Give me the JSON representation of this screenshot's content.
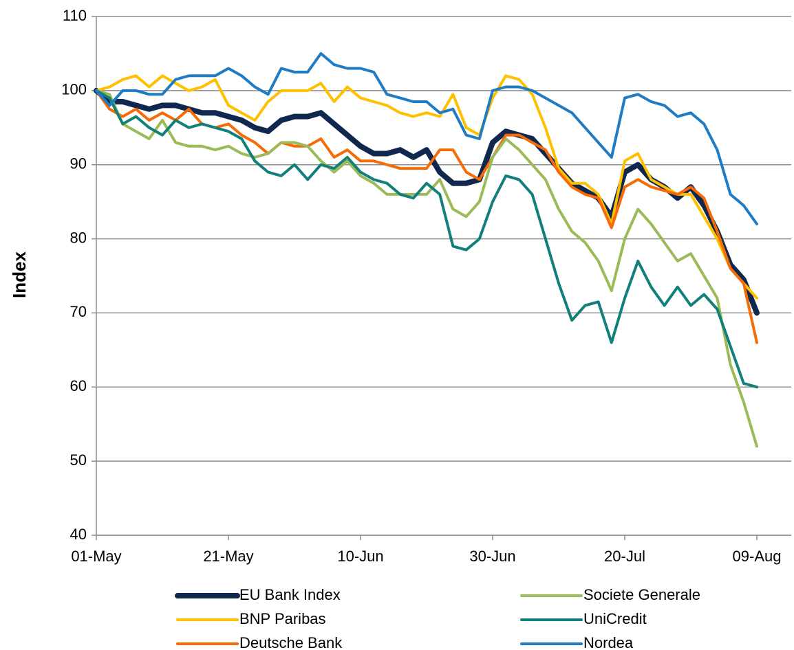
{
  "chart_data": {
    "type": "line",
    "y_label": "Index",
    "categories": [
      "01-May",
      null,
      null,
      null,
      null,
      null,
      null,
      null,
      null,
      null,
      "21-May",
      null,
      null,
      null,
      null,
      null,
      null,
      null,
      null,
      null,
      "10-Jun",
      null,
      null,
      null,
      null,
      null,
      null,
      null,
      null,
      null,
      "30-Jun",
      null,
      null,
      null,
      null,
      null,
      null,
      null,
      null,
      null,
      "20-Jul",
      null,
      null,
      null,
      null,
      null,
      null,
      null,
      null,
      null,
      "09-Aug"
    ],
    "ylim": [
      40,
      110
    ],
    "yticks": [
      40,
      50,
      60,
      70,
      80,
      90,
      100,
      110
    ],
    "grid": true,
    "legend": "bottom",
    "series": [
      {
        "name": "EU Bank Index",
        "color": "#10284e",
        "line_width": 8,
        "values": [
          100,
          98.5,
          98.5,
          98,
          97.5,
          98,
          98,
          97.5,
          97,
          97,
          96.5,
          96,
          95,
          94.5,
          96,
          96.5,
          96.5,
          97,
          95.5,
          94,
          92.5,
          91.5,
          91.5,
          92,
          91,
          92,
          89,
          87.5,
          87.5,
          88,
          93,
          94.5,
          94,
          93.5,
          91.5,
          89.5,
          87.5,
          86.5,
          85.5,
          83,
          89,
          90,
          88,
          87,
          85.5,
          87,
          84.5,
          81,
          76.5,
          74.5,
          70
        ]
      },
      {
        "name": "BNP Paribas",
        "color": "#ffc000",
        "line_width": 4,
        "values": [
          100,
          100.5,
          101.5,
          102,
          100.5,
          102,
          101,
          100,
          100.5,
          101.5,
          98,
          97,
          96,
          98.5,
          100,
          100,
          100,
          101,
          98.5,
          100.5,
          99,
          98.5,
          98,
          97,
          96.5,
          97,
          96.5,
          99.5,
          95,
          94,
          99,
          102,
          101.5,
          99.5,
          95,
          89.5,
          87.5,
          87.5,
          86,
          82,
          90.5,
          91.5,
          88,
          87,
          86,
          86,
          83,
          80,
          76,
          74,
          72
        ]
      },
      {
        "name": "Deutsche Bank",
        "color": "#f56b07",
        "line_width": 4,
        "values": [
          100,
          97.5,
          96.5,
          97.5,
          96,
          97,
          96,
          97.5,
          95.5,
          95,
          95.5,
          94,
          93,
          91.5,
          93,
          92.5,
          92.5,
          93.5,
          91,
          92,
          90.5,
          90.5,
          90,
          89.5,
          89.5,
          89.5,
          92,
          92,
          89,
          88,
          91,
          94,
          94,
          93,
          92,
          89,
          87,
          86,
          85.5,
          81.5,
          87,
          88,
          87,
          86.5,
          86,
          87,
          85.5,
          81,
          76,
          74,
          66
        ]
      },
      {
        "name": "Societe Generale",
        "color": "#9bbb59",
        "line_width": 4,
        "values": [
          100,
          99.5,
          95.5,
          94.5,
          93.5,
          96,
          93,
          92.5,
          92.5,
          92,
          92.5,
          91.5,
          91,
          91.5,
          93,
          93,
          92.5,
          90.5,
          89,
          90.5,
          88.5,
          87.5,
          86,
          86,
          86,
          86,
          88,
          84,
          83,
          85,
          91,
          93.5,
          92,
          90,
          88,
          84,
          81,
          79.5,
          77,
          73,
          80,
          84,
          82,
          79.5,
          77,
          78,
          75,
          72,
          63,
          58,
          52
        ]
      },
      {
        "name": "UniCredit",
        "color": "#12807a",
        "line_width": 4,
        "values": [
          100,
          99,
          95.5,
          96.5,
          95,
          94,
          96,
          95,
          95.5,
          95,
          94.5,
          93.5,
          90.5,
          89,
          88.5,
          90,
          88,
          90,
          89.5,
          91,
          89,
          88,
          87.5,
          86,
          85.5,
          87.5,
          86,
          79,
          78.5,
          80,
          85,
          88.5,
          88,
          86,
          80,
          74,
          69,
          71,
          71.5,
          66,
          72,
          77,
          73.5,
          71,
          73.5,
          71,
          72.5,
          70.5,
          65.5,
          60.5,
          60
        ]
      },
      {
        "name": "Nordea",
        "color": "#1f7cc4",
        "line_width": 4,
        "values": [
          100,
          98,
          100,
          100,
          99.5,
          99.5,
          101.5,
          102,
          102,
          102,
          103,
          102,
          100.5,
          99.5,
          103,
          102.5,
          102.5,
          105,
          103.5,
          103,
          103,
          102.5,
          99.5,
          99,
          98.5,
          98.5,
          97,
          97.5,
          94,
          93.5,
          100,
          100.5,
          100.5,
          100,
          99,
          98,
          97,
          95,
          93,
          91,
          99,
          99.5,
          98.5,
          98,
          96.5,
          97,
          95.5,
          92,
          86,
          84.5,
          82
        ]
      }
    ]
  }
}
